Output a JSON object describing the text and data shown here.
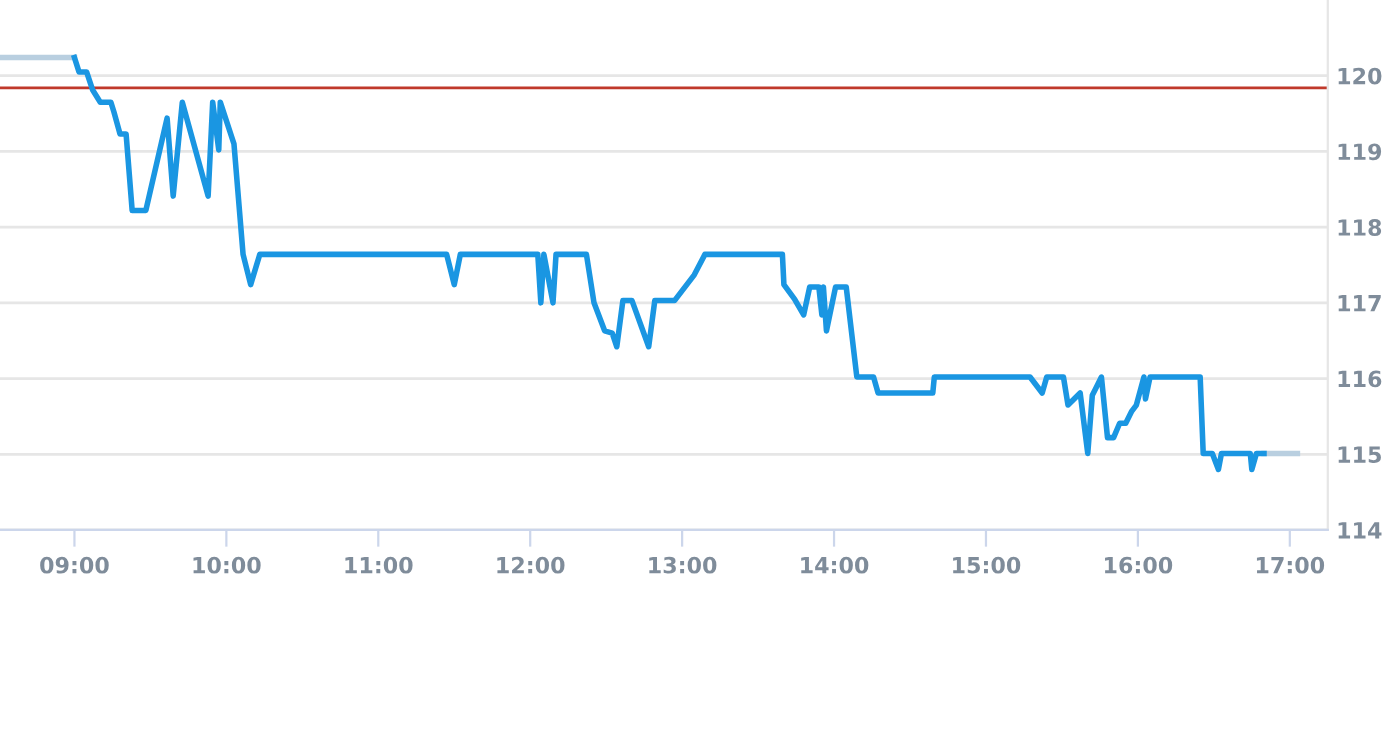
{
  "chart_data": {
    "type": "line",
    "xlim": [
      8.51,
      17.25
    ],
    "ylim": [
      114,
      121
    ],
    "xticks": [
      {
        "value": 9,
        "label": "09:00"
      },
      {
        "value": 10,
        "label": "10:00"
      },
      {
        "value": 11,
        "label": "11:00"
      },
      {
        "value": 12,
        "label": "12:00"
      },
      {
        "value": 13,
        "label": "13:00"
      },
      {
        "value": 14,
        "label": "14:00"
      },
      {
        "value": 15,
        "label": "15:00"
      },
      {
        "value": 16,
        "label": "16:00"
      },
      {
        "value": 17,
        "label": "17:00"
      }
    ],
    "yticks": [
      114,
      115,
      116,
      117,
      118,
      119,
      120
    ],
    "grid": "y",
    "marker": "none",
    "line_style": "solid",
    "ref_lines": [
      {
        "axis": "y",
        "value": 119.84,
        "color": "#c0392b"
      }
    ],
    "series": [
      {
        "color": "#b9cfe0",
        "x": [
          8.51,
          9.0,
          9.01,
          16.83,
          17.05
        ],
        "values": [
          120.24,
          120.24,
          null,
          115.01,
          115.01
        ]
      },
      {
        "color": "#1a96e2",
        "x": [
          9.0,
          9.03,
          9.08,
          9.12,
          9.17,
          9.24,
          9.26,
          9.3,
          9.34,
          9.38,
          9.47,
          9.61,
          9.65,
          9.71,
          9.88,
          9.91,
          9.95,
          9.96,
          10.05,
          10.11,
          10.16,
          10.22,
          11.45,
          11.5,
          11.54,
          12.05,
          12.07,
          12.09,
          12.15,
          12.17,
          12.37,
          12.42,
          12.49,
          12.54,
          12.57,
          12.61,
          12.67,
          12.78,
          12.82,
          12.95,
          13.08,
          13.15,
          13.66,
          13.67,
          13.74,
          13.8,
          13.84,
          13.9,
          13.92,
          13.93,
          13.95,
          14.01,
          14.08,
          14.15,
          14.26,
          14.29,
          14.65,
          14.66,
          15.29,
          15.37,
          15.4,
          15.51,
          15.54,
          15.59,
          15.62,
          15.67,
          15.7,
          15.72,
          15.76,
          15.8,
          15.84,
          15.88,
          15.92,
          15.96,
          15.99,
          16.04,
          16.05,
          16.08,
          16.41,
          16.43,
          16.49,
          16.53,
          16.55,
          16.74,
          16.75,
          16.78,
          16.83
        ],
        "values": [
          120.24,
          120.05,
          120.05,
          119.81,
          119.65,
          119.65,
          119.52,
          119.23,
          119.23,
          118.22,
          118.22,
          119.44,
          118.41,
          119.65,
          118.41,
          119.65,
          119.02,
          119.65,
          119.1,
          117.64,
          117.24,
          117.64,
          117.64,
          117.24,
          117.64,
          117.64,
          117.0,
          117.64,
          117.0,
          117.64,
          117.64,
          117.0,
          116.63,
          116.6,
          116.42,
          117.03,
          117.03,
          116.42,
          117.03,
          117.03,
          117.37,
          117.64,
          117.64,
          117.24,
          117.05,
          116.84,
          117.21,
          117.21,
          116.84,
          117.21,
          116.63,
          117.21,
          117.21,
          116.02,
          116.02,
          115.81,
          115.81,
          116.02,
          116.02,
          115.81,
          116.02,
          116.02,
          115.65,
          115.75,
          115.81,
          115.01,
          115.78,
          115.86,
          116.02,
          115.22,
          115.22,
          115.41,
          115.41,
          115.57,
          115.65,
          116.02,
          115.73,
          116.02,
          116.02,
          115.01,
          115.01,
          114.8,
          115.01,
          115.01,
          114.8,
          115.01,
          115.01
        ]
      }
    ]
  }
}
